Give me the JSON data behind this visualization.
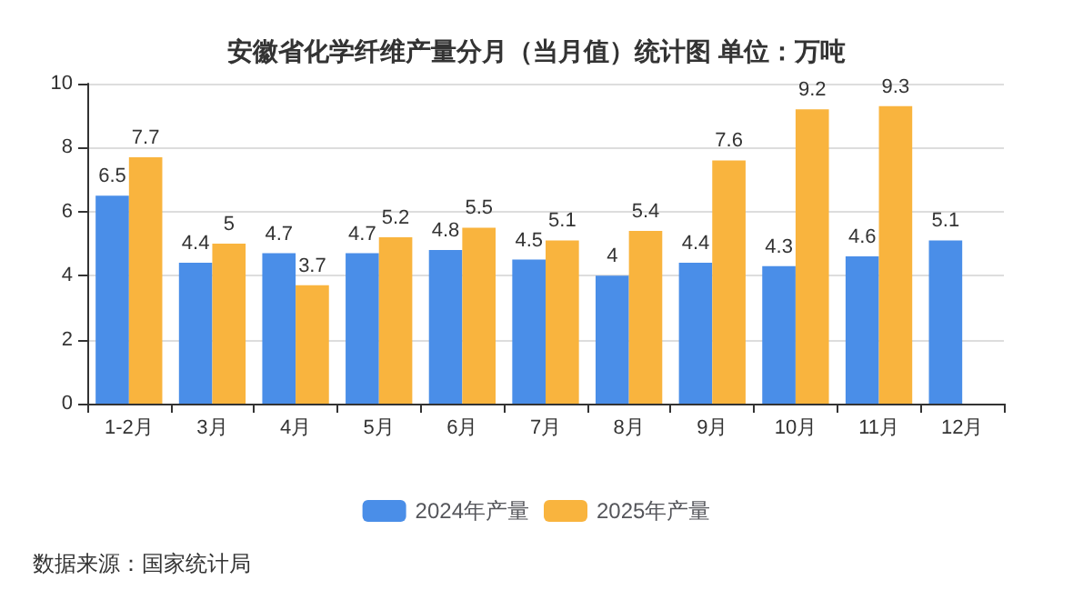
{
  "chart_data": {
    "type": "bar",
    "title": "安徽省化学纤维产量分月（当月值）统计图 单位：万吨",
    "categories": [
      "1-2月",
      "3月",
      "4月",
      "5月",
      "6月",
      "7月",
      "8月",
      "9月",
      "10月",
      "11月",
      "12月"
    ],
    "series": [
      {
        "name": "2024年产量",
        "color": "#4a8ee8",
        "values": [
          6.5,
          4.4,
          4.7,
          4.7,
          4.8,
          4.5,
          4,
          4.4,
          4.3,
          4.6,
          5.1
        ]
      },
      {
        "name": "2025年产量",
        "color": "#f9b43e",
        "values": [
          7.7,
          5,
          3.7,
          5.2,
          5.5,
          5.1,
          5.4,
          7.6,
          9.2,
          9.3,
          null
        ]
      }
    ],
    "ylim": [
      0,
      10
    ],
    "yticks": [
      0,
      2,
      4,
      6,
      8,
      10
    ],
    "grid": "y",
    "legend": "bottom",
    "data_labels": true,
    "annotations": [
      "数据来源：国家统计局"
    ]
  }
}
